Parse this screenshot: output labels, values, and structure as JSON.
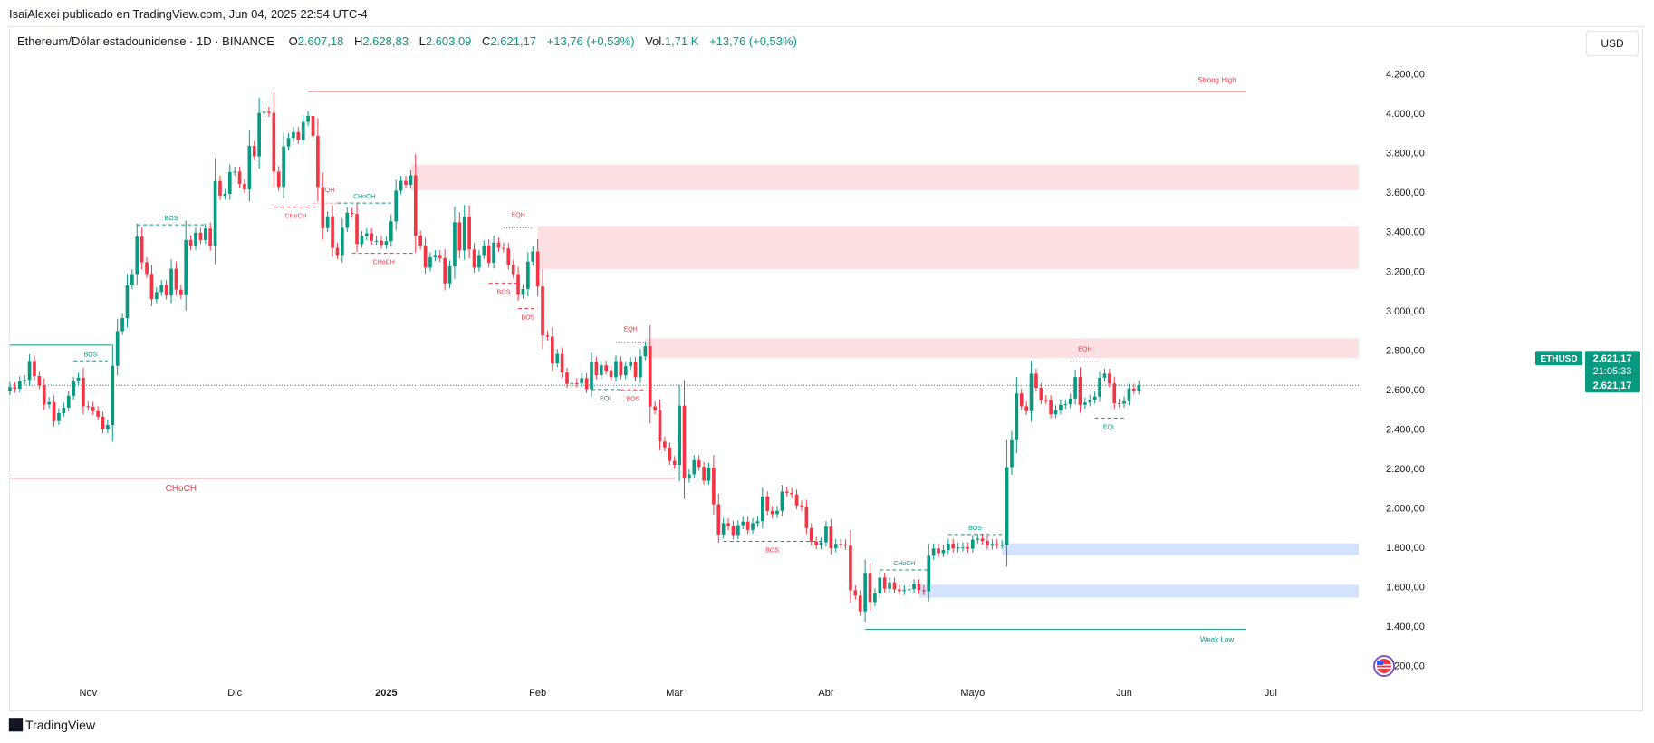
{
  "header": {
    "publisher": "IsaiAlexei publicado en TradingView.com, Jun 04, 2025 22:54 UTC-4"
  },
  "legend": {
    "symbol": "Ethereum/Dólar estadounidense · 1D · BINANCE",
    "o_label": "O",
    "o_value": "2.607,18",
    "h_label": "H",
    "h_value": "2.628,83",
    "l_label": "L",
    "l_value": "2.603,09",
    "c_label": "C",
    "c_value": "2.621,17",
    "change": "+13,76 (+0,53%)",
    "vol_label": "Vol.",
    "vol_value": "1,71 K",
    "vol_change": "+13,76 (+0,53%)"
  },
  "currency": "USD",
  "footer": {
    "brand": "TradingView",
    "icon": "tradingview-logo-icon"
  },
  "colors": {
    "up": "#089981",
    "down": "#f23645",
    "supply": "#fde0e1",
    "demand": "#d3e3fd"
  },
  "chart_data": {
    "type": "candlestick",
    "y_axis": {
      "ticks": [
        1200,
        1400,
        1600,
        1800,
        2000,
        2200,
        2400,
        2600,
        2800,
        3000,
        3200,
        3400,
        3600,
        3800,
        4000,
        4200
      ],
      "tick_labels": [
        "1.200,00",
        "1.400,00",
        "1.600,00",
        "1.800,00",
        "2.000,00",
        "2.200,00",
        "2.400,00",
        "2.600,00",
        "2.800,00",
        "3.000,00",
        "3.200,00",
        "3.400,00",
        "3.600,00",
        "3.800,00",
        "4.000,00",
        "4.200,00"
      ],
      "range": [
        1120,
        4290
      ]
    },
    "x_axis": {
      "date_range": [
        "2024-10-16",
        "2025-07-19"
      ],
      "ticks": [
        {
          "date": "2024-11-01",
          "label": "Nov"
        },
        {
          "date": "2024-12-01",
          "label": "Dic"
        },
        {
          "date": "2025-01-01",
          "label": "2025"
        },
        {
          "date": "2025-02-01",
          "label": "Feb"
        },
        {
          "date": "2025-03-01",
          "label": "Mar"
        },
        {
          "date": "2025-04-01",
          "label": "Abr"
        },
        {
          "date": "2025-05-01",
          "label": "Mayo"
        },
        {
          "date": "2025-06-01",
          "label": "Jun"
        },
        {
          "date": "2025-07-01",
          "label": "Jul"
        }
      ]
    },
    "price_label": {
      "symbol": "ETHUSD",
      "price": "2.621,17",
      "countdown": "21:05:33",
      "last": "2.621,17",
      "value": 2621.17
    },
    "closes": [
      [
        "2024-10-16",
        2612
      ],
      [
        "2024-10-17",
        2604
      ],
      [
        "2024-10-18",
        2642
      ],
      [
        "2024-10-19",
        2648
      ],
      [
        "2024-10-20",
        2745
      ],
      [
        "2024-10-21",
        2668
      ],
      [
        "2024-10-22",
        2622
      ],
      [
        "2024-10-23",
        2524
      ],
      [
        "2024-10-24",
        2536
      ],
      [
        "2024-10-25",
        2440
      ],
      [
        "2024-10-26",
        2480
      ],
      [
        "2024-10-27",
        2508
      ],
      [
        "2024-10-28",
        2568
      ],
      [
        "2024-10-29",
        2640
      ],
      [
        "2024-10-30",
        2660
      ],
      [
        "2024-10-31",
        2515
      ],
      [
        "2024-11-01",
        2512
      ],
      [
        "2024-11-02",
        2490
      ],
      [
        "2024-11-03",
        2462
      ],
      [
        "2024-11-04",
        2398
      ],
      [
        "2024-11-05",
        2420
      ],
      [
        "2024-11-06",
        2720
      ],
      [
        "2024-11-07",
        2896
      ],
      [
        "2024-11-08",
        2962
      ],
      [
        "2024-11-09",
        3128
      ],
      [
        "2024-11-10",
        3185
      ],
      [
        "2024-11-11",
        3375
      ],
      [
        "2024-11-12",
        3245
      ],
      [
        "2024-11-13",
        3186
      ],
      [
        "2024-11-14",
        3058
      ],
      [
        "2024-11-15",
        3094
      ],
      [
        "2024-11-16",
        3130
      ],
      [
        "2024-11-17",
        3076
      ],
      [
        "2024-11-18",
        3212
      ],
      [
        "2024-11-19",
        3106
      ],
      [
        "2024-11-20",
        3078
      ],
      [
        "2024-11-21",
        3358
      ],
      [
        "2024-11-22",
        3326
      ],
      [
        "2024-11-23",
        3395
      ],
      [
        "2024-11-24",
        3358
      ],
      [
        "2024-11-25",
        3416
      ],
      [
        "2024-11-26",
        3328
      ],
      [
        "2024-11-27",
        3657
      ],
      [
        "2024-11-28",
        3582
      ],
      [
        "2024-11-29",
        3592
      ],
      [
        "2024-11-30",
        3703
      ],
      [
        "2024-12-01",
        3705
      ],
      [
        "2024-12-02",
        3642
      ],
      [
        "2024-12-03",
        3615
      ],
      [
        "2024-12-04",
        3835
      ],
      [
        "2024-12-05",
        3782
      ],
      [
        "2024-12-06",
        4002
      ],
      [
        "2024-12-07",
        4008
      ],
      [
        "2024-12-08",
        4002
      ],
      [
        "2024-12-09",
        3705
      ],
      [
        "2024-12-10",
        3627
      ],
      [
        "2024-12-11",
        3832
      ],
      [
        "2024-12-12",
        3875
      ],
      [
        "2024-12-13",
        3905
      ],
      [
        "2024-12-14",
        3865
      ],
      [
        "2024-12-15",
        3957
      ],
      [
        "2024-12-16",
        3987
      ],
      [
        "2024-12-17",
        3885
      ],
      [
        "2024-12-18",
        3627
      ],
      [
        "2024-12-19",
        3418
      ],
      [
        "2024-12-20",
        3478
      ],
      [
        "2024-12-21",
        3318
      ],
      [
        "2024-12-22",
        3282
      ],
      [
        "2024-12-23",
        3420
      ],
      [
        "2024-12-24",
        3496
      ],
      [
        "2024-12-25",
        3490
      ],
      [
        "2024-12-26",
        3338
      ],
      [
        "2024-12-27",
        3378
      ],
      [
        "2024-12-28",
        3392
      ],
      [
        "2024-12-29",
        3354
      ],
      [
        "2024-12-30",
        3354
      ],
      [
        "2024-12-31",
        3334
      ],
      [
        "2025-01-01",
        3352
      ],
      [
        "2025-01-02",
        3452
      ],
      [
        "2025-01-03",
        3608
      ],
      [
        "2025-01-04",
        3658
      ],
      [
        "2025-01-05",
        3638
      ],
      [
        "2025-01-06",
        3686
      ],
      [
        "2025-01-07",
        3380
      ],
      [
        "2025-01-08",
        3330
      ],
      [
        "2025-01-09",
        3218
      ],
      [
        "2025-01-10",
        3270
      ],
      [
        "2025-01-11",
        3282
      ],
      [
        "2025-01-12",
        3266
      ],
      [
        "2025-01-13",
        3138
      ],
      [
        "2025-01-14",
        3224
      ],
      [
        "2025-01-15",
        3448
      ],
      [
        "2025-01-16",
        3305
      ],
      [
        "2025-01-17",
        3476
      ],
      [
        "2025-01-18",
        3310
      ],
      [
        "2025-01-19",
        3218
      ],
      [
        "2025-01-20",
        3282
      ],
      [
        "2025-01-21",
        3330
      ],
      [
        "2025-01-22",
        3242
      ],
      [
        "2025-01-23",
        3345
      ],
      [
        "2025-01-24",
        3318
      ],
      [
        "2025-01-25",
        3315
      ],
      [
        "2025-01-26",
        3232
      ],
      [
        "2025-01-27",
        3185
      ],
      [
        "2025-01-28",
        3080
      ],
      [
        "2025-01-29",
        3110
      ],
      [
        "2025-01-30",
        3248
      ],
      [
        "2025-01-31",
        3300
      ],
      [
        "2025-02-01",
        3122
      ],
      [
        "2025-02-02",
        2874
      ],
      [
        "2025-02-03",
        2868
      ],
      [
        "2025-02-04",
        2732
      ],
      [
        "2025-02-05",
        2780
      ],
      [
        "2025-02-06",
        2686
      ],
      [
        "2025-02-07",
        2628
      ],
      [
        "2025-02-08",
        2632
      ],
      [
        "2025-02-09",
        2630
      ],
      [
        "2025-02-10",
        2658
      ],
      [
        "2025-02-11",
        2602
      ],
      [
        "2025-02-12",
        2740
      ],
      [
        "2025-02-13",
        2672
      ],
      [
        "2025-02-14",
        2722
      ],
      [
        "2025-02-15",
        2696
      ],
      [
        "2025-02-16",
        2662
      ],
      [
        "2025-02-17",
        2744
      ],
      [
        "2025-02-18",
        2672
      ],
      [
        "2025-02-19",
        2718
      ],
      [
        "2025-02-20",
        2738
      ],
      [
        "2025-02-21",
        2662
      ],
      [
        "2025-02-22",
        2768
      ],
      [
        "2025-02-23",
        2819
      ],
      [
        "2025-02-24",
        2514
      ],
      [
        "2025-02-25",
        2494
      ],
      [
        "2025-02-26",
        2336
      ],
      [
        "2025-02-27",
        2306
      ],
      [
        "2025-02-28",
        2238
      ],
      [
        "2025-03-01",
        2218
      ],
      [
        "2025-03-02",
        2518
      ],
      [
        "2025-03-03",
        2148
      ],
      [
        "2025-03-04",
        2170
      ],
      [
        "2025-03-05",
        2242
      ],
      [
        "2025-03-06",
        2208
      ],
      [
        "2025-03-07",
        2138
      ],
      [
        "2025-03-08",
        2203
      ],
      [
        "2025-03-09",
        2018
      ],
      [
        "2025-03-10",
        1865
      ],
      [
        "2025-03-11",
        1922
      ],
      [
        "2025-03-12",
        1908
      ],
      [
        "2025-03-13",
        1862
      ],
      [
        "2025-03-14",
        1912
      ],
      [
        "2025-03-15",
        1930
      ],
      [
        "2025-03-16",
        1888
      ],
      [
        "2025-03-17",
        1922
      ],
      [
        "2025-03-18",
        1932
      ],
      [
        "2025-03-19",
        2058
      ],
      [
        "2025-03-20",
        1984
      ],
      [
        "2025-03-21",
        1968
      ],
      [
        "2025-03-22",
        1985
      ],
      [
        "2025-03-23",
        2082
      ],
      [
        "2025-03-24",
        2076
      ],
      [
        "2025-03-25",
        2068
      ],
      [
        "2025-03-26",
        2012
      ],
      [
        "2025-03-27",
        2004
      ],
      [
        "2025-03-28",
        1897
      ],
      [
        "2025-03-29",
        1828
      ],
      [
        "2025-03-30",
        1810
      ],
      [
        "2025-03-31",
        1825
      ],
      [
        "2025-04-01",
        1905
      ],
      [
        "2025-04-02",
        1795
      ],
      [
        "2025-04-03",
        1817
      ],
      [
        "2025-04-04",
        1815
      ],
      [
        "2025-04-05",
        1808
      ],
      [
        "2025-04-06",
        1582
      ],
      [
        "2025-04-07",
        1555
      ],
      [
        "2025-04-08",
        1475
      ],
      [
        "2025-04-09",
        1670
      ],
      [
        "2025-04-10",
        1522
      ],
      [
        "2025-04-11",
        1566
      ],
      [
        "2025-04-12",
        1646
      ],
      [
        "2025-04-13",
        1590
      ],
      [
        "2025-04-14",
        1622
      ],
      [
        "2025-04-15",
        1587
      ],
      [
        "2025-04-16",
        1578
      ],
      [
        "2025-04-17",
        1583
      ],
      [
        "2025-04-18",
        1588
      ],
      [
        "2025-04-19",
        1613
      ],
      [
        "2025-04-20",
        1583
      ],
      [
        "2025-04-21",
        1577
      ],
      [
        "2025-04-22",
        1757
      ],
      [
        "2025-04-23",
        1794
      ],
      [
        "2025-04-24",
        1770
      ],
      [
        "2025-04-25",
        1786
      ],
      [
        "2025-04-26",
        1818
      ],
      [
        "2025-04-27",
        1794
      ],
      [
        "2025-04-28",
        1799
      ],
      [
        "2025-04-29",
        1799
      ],
      [
        "2025-04-30",
        1793
      ],
      [
        "2025-05-01",
        1838
      ],
      [
        "2025-05-02",
        1844
      ],
      [
        "2025-05-03",
        1832
      ],
      [
        "2025-05-04",
        1808
      ],
      [
        "2025-05-05",
        1816
      ],
      [
        "2025-05-06",
        1812
      ],
      [
        "2025-05-07",
        1812
      ],
      [
        "2025-05-08",
        2206
      ],
      [
        "2025-05-09",
        2343
      ],
      [
        "2025-05-10",
        2580
      ],
      [
        "2025-05-11",
        2515
      ],
      [
        "2025-05-12",
        2490
      ],
      [
        "2025-05-13",
        2680
      ],
      [
        "2025-05-14",
        2608
      ],
      [
        "2025-05-15",
        2546
      ],
      [
        "2025-05-16",
        2545
      ],
      [
        "2025-05-17",
        2475
      ],
      [
        "2025-05-18",
        2495
      ],
      [
        "2025-05-19",
        2522
      ],
      [
        "2025-05-20",
        2525
      ],
      [
        "2025-05-21",
        2554
      ],
      [
        "2025-05-22",
        2663
      ],
      [
        "2025-05-23",
        2522
      ],
      [
        "2025-05-24",
        2534
      ],
      [
        "2025-05-25",
        2548
      ],
      [
        "2025-05-26",
        2564
      ],
      [
        "2025-05-27",
        2660
      ],
      [
        "2025-05-28",
        2680
      ],
      [
        "2025-05-29",
        2630
      ],
      [
        "2025-05-30",
        2530
      ],
      [
        "2025-05-31",
        2528
      ],
      [
        "2025-06-01",
        2540
      ],
      [
        "2025-06-02",
        2605
      ],
      [
        "2025-06-03",
        2595
      ],
      [
        "2025-06-04",
        2621
      ]
    ],
    "zones": [
      {
        "kind": "supply",
        "from": "2025-01-06",
        "to": "2025-07-19",
        "low": 3610,
        "high": 3740
      },
      {
        "kind": "supply",
        "from": "2025-02-01",
        "to": "2025-07-19",
        "low": 3210,
        "high": 3430
      },
      {
        "kind": "supply",
        "from": "2025-02-23",
        "to": "2025-07-19",
        "low": 2760,
        "high": 2860
      },
      {
        "kind": "demand",
        "from": "2025-05-07",
        "to": "2025-07-19",
        "low": 1760,
        "high": 1820
      },
      {
        "kind": "demand",
        "from": "2025-04-20",
        "to": "2025-07-19",
        "low": 1545,
        "high": 1610
      }
    ],
    "levels": [
      {
        "label": "Strong High",
        "price": 4110,
        "from": "2024-12-16",
        "to": "2025-06-26",
        "color": "#f23645",
        "label_at": "2025-06-20"
      },
      {
        "label": "Weak Low",
        "price": 1385,
        "from": "2025-04-09",
        "to": "2025-06-26",
        "color": "#089981",
        "label_at": "2025-06-20",
        "below": true
      },
      {
        "label": "CHoCH",
        "price": 2150,
        "from": "2024-10-16",
        "to": "2025-03-01",
        "color": "#f23645",
        "label_at": "2024-11-20",
        "below": true
      },
      {
        "label": "",
        "price": 2825,
        "from": "2024-10-16",
        "to": "2024-11-06",
        "color": "#089981"
      }
    ],
    "structures": [
      {
        "label": "BOS",
        "price": 3435,
        "from": "2024-11-11",
        "to": "2024-11-25",
        "color": "#089981",
        "dash": true,
        "label_above": true
      },
      {
        "label": "BOS",
        "price": 2745,
        "from": "2024-10-29",
        "to": "2024-11-05",
        "color": "#089981",
        "dash": true,
        "label_above": true
      },
      {
        "label": "CHoCH",
        "price": 3525,
        "from": "2024-12-09",
        "to": "2024-12-18",
        "color": "#f23645",
        "dash": true,
        "label_above": false
      },
      {
        "label": "CHoCH",
        "price": 3545,
        "from": "2024-12-22",
        "to": "2025-01-02",
        "color": "#089981",
        "dash": true,
        "label_above": true
      },
      {
        "label": "CHoCH",
        "price": 3290,
        "from": "2024-12-25",
        "to": "2025-01-07",
        "color": "#f23645",
        "dash": true,
        "label_above": false
      },
      {
        "label": "BOS",
        "price": 3140,
        "from": "2025-01-22",
        "to": "2025-01-28",
        "color": "#f23645",
        "dash": true,
        "label_above": false
      },
      {
        "label": "BOS",
        "price": 3010,
        "from": "2025-01-28",
        "to": "2025-02-01",
        "color": "#f23645",
        "dash": true,
        "label_above": false
      },
      {
        "label": "BOS",
        "price": 2598,
        "from": "2025-02-18",
        "to": "2025-02-23",
        "color": "#f23645",
        "dash": true,
        "label_above": false
      },
      {
        "label": "EQL",
        "price": 2600,
        "from": "2025-02-12",
        "to": "2025-02-18",
        "color": "#089981",
        "dash": true,
        "label_above": false
      },
      {
        "label": "BOS",
        "price": 1830,
        "from": "2025-03-11",
        "to": "2025-03-31",
        "color": "#f23645",
        "dash": true,
        "label_above": false
      },
      {
        "label": "CHoCH",
        "price": 1685,
        "from": "2025-04-12",
        "to": "2025-04-22",
        "color": "#089981",
        "dash": true,
        "label_above": true
      },
      {
        "label": "BOS",
        "price": 1865,
        "from": "2025-04-26",
        "to": "2025-05-07",
        "color": "#089981",
        "dash": true,
        "label_above": true
      },
      {
        "label": "EQL",
        "price": 2455,
        "from": "2025-05-26",
        "to": "2025-06-01",
        "color": "#089981",
        "dash": true,
        "label_above": false
      }
    ],
    "eqh": [
      {
        "label": "EQH",
        "price": 3545,
        "from": "2024-12-17",
        "to": "2024-12-23",
        "color": "#f23645"
      },
      {
        "label": "EQH",
        "price": 3420,
        "from": "2025-01-25",
        "to": "2025-01-31",
        "color": "#f23645"
      },
      {
        "label": "EQH",
        "price": 2840,
        "from": "2025-02-17",
        "to": "2025-02-23",
        "color": "#f23645"
      },
      {
        "label": "EQH",
        "price": 2740,
        "from": "2025-05-21",
        "to": "2025-05-27",
        "color": "#f23645"
      }
    ]
  }
}
